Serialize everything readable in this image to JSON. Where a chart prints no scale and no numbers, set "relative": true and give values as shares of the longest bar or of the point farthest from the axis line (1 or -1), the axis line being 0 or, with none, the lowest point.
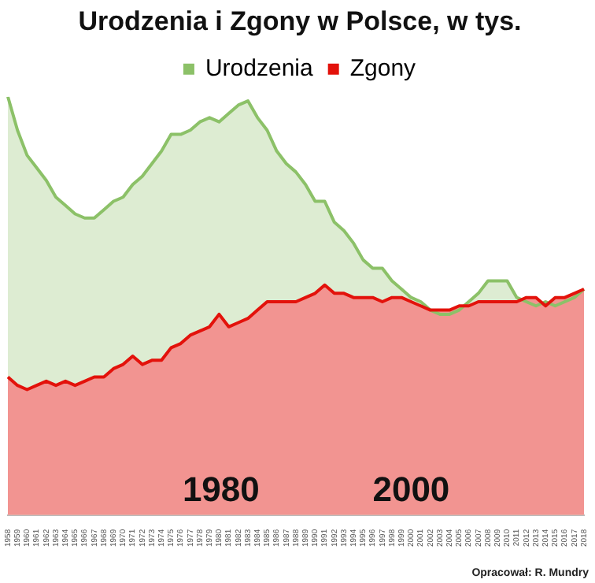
{
  "chart_data": {
    "type": "area",
    "title": "Urodzenia i Zgony w Polsce, w tys.",
    "relative": true,
    "legend": "top",
    "categories": [
      "1958",
      "1959",
      "1960",
      "1961",
      "1962",
      "1963",
      "1964",
      "1965",
      "1966",
      "1967",
      "1968",
      "1969",
      "1970",
      "1971",
      "1972",
      "1973",
      "1974",
      "1975",
      "1976",
      "1977",
      "1978",
      "1979",
      "1980",
      "1981",
      "1982",
      "1983",
      "1984",
      "1985",
      "1986",
      "1987",
      "1988",
      "1989",
      "1990",
      "1991",
      "1992",
      "1993",
      "1994",
      "1995",
      "1996",
      "1997",
      "1998",
      "1999",
      "2000",
      "2001",
      "2002",
      "2003",
      "2004",
      "2005",
      "2006",
      "2007",
      "2008",
      "2009",
      "2010",
      "2011",
      "2012",
      "2013",
      "2014",
      "2015",
      "2016",
      "2017",
      "2018"
    ],
    "series": [
      {
        "name": "Urodzenia",
        "color": "#8cc168",
        "values": [
          1.0,
          0.92,
          0.86,
          0.83,
          0.8,
          0.76,
          0.74,
          0.72,
          0.71,
          0.71,
          0.73,
          0.75,
          0.76,
          0.79,
          0.81,
          0.84,
          0.87,
          0.91,
          0.91,
          0.92,
          0.94,
          0.95,
          0.94,
          0.96,
          0.98,
          0.99,
          0.95,
          0.92,
          0.87,
          0.84,
          0.82,
          0.79,
          0.75,
          0.75,
          0.7,
          0.68,
          0.65,
          0.61,
          0.59,
          0.59,
          0.56,
          0.54,
          0.52,
          0.51,
          0.49,
          0.48,
          0.48,
          0.49,
          0.51,
          0.53,
          0.56,
          0.56,
          0.56,
          0.52,
          0.51,
          0.5,
          0.51,
          0.5,
          0.51,
          0.52,
          0.54
        ]
      },
      {
        "name": "Zgony",
        "color": "#e3120b",
        "values": [
          0.33,
          0.31,
          0.3,
          0.31,
          0.32,
          0.31,
          0.32,
          0.31,
          0.32,
          0.33,
          0.33,
          0.35,
          0.36,
          0.38,
          0.36,
          0.37,
          0.37,
          0.4,
          0.41,
          0.43,
          0.44,
          0.45,
          0.48,
          0.45,
          0.46,
          0.47,
          0.49,
          0.51,
          0.51,
          0.51,
          0.51,
          0.52,
          0.53,
          0.55,
          0.53,
          0.53,
          0.52,
          0.52,
          0.52,
          0.51,
          0.52,
          0.52,
          0.51,
          0.5,
          0.49,
          0.49,
          0.49,
          0.5,
          0.5,
          0.51,
          0.51,
          0.51,
          0.51,
          0.51,
          0.52,
          0.52,
          0.5,
          0.52,
          0.52,
          0.53,
          0.54
        ]
      }
    ],
    "annotations": [
      "1980",
      "2000",
      "Opracował: R. Mundry"
    ]
  }
}
